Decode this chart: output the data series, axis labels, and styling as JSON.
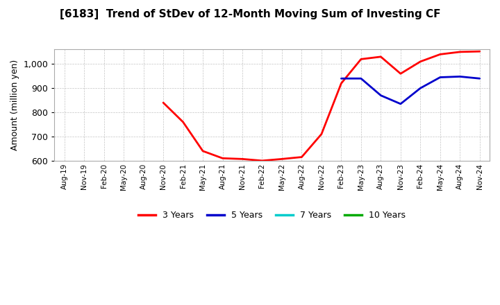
{
  "title": "[6183]  Trend of StDev of 12-Month Moving Sum of Investing CF",
  "ylabel": "Amount (million yen)",
  "background_color": "#ffffff",
  "grid_color": "#aaaaaa",
  "ylim": [
    600,
    1060
  ],
  "yticks": [
    600,
    700,
    800,
    900,
    1000
  ],
  "ytick_labels": [
    "600",
    "700",
    "800",
    "900",
    "1,000"
  ],
  "x_labels": [
    "Aug-19",
    "Nov-19",
    "Feb-20",
    "May-20",
    "Aug-20",
    "Nov-20",
    "Feb-21",
    "May-21",
    "Aug-21",
    "Nov-21",
    "Feb-22",
    "May-22",
    "Aug-22",
    "Nov-22",
    "Feb-23",
    "May-23",
    "Aug-23",
    "Nov-23",
    "Feb-24",
    "May-24",
    "Aug-24",
    "Nov-24"
  ],
  "series_3y": {
    "color": "#ff0000",
    "label": "3 Years",
    "x": [
      0,
      1,
      2,
      3,
      4,
      5,
      6,
      7,
      8,
      9,
      10,
      11,
      12,
      13,
      14,
      15,
      16,
      17,
      18,
      19,
      20,
      21
    ],
    "y": [
      null,
      null,
      null,
      null,
      null,
      840,
      760,
      640,
      610,
      607,
      600,
      607,
      615,
      710,
      920,
      1020,
      1030,
      960,
      1010,
      1040,
      1050,
      1052
    ]
  },
  "series_5y": {
    "color": "#0000cc",
    "label": "5 Years",
    "x": [
      0,
      1,
      2,
      3,
      4,
      5,
      6,
      7,
      8,
      9,
      10,
      11,
      12,
      13,
      14,
      15,
      16,
      17,
      18,
      19,
      20,
      21
    ],
    "y": [
      null,
      null,
      null,
      null,
      null,
      null,
      null,
      null,
      null,
      null,
      null,
      null,
      null,
      null,
      940,
      940,
      870,
      835,
      900,
      945,
      948,
      940
    ]
  },
  "series_7y": {
    "color": "#00cccc",
    "label": "7 Years",
    "x": [],
    "y": []
  },
  "series_10y": {
    "color": "#00aa00",
    "label": "10 Years",
    "x": [],
    "y": []
  },
  "legend_entries": [
    {
      "label": "3 Years",
      "color": "#ff0000"
    },
    {
      "label": "5 Years",
      "color": "#0000cc"
    },
    {
      "label": "7 Years",
      "color": "#00cccc"
    },
    {
      "label": "10 Years",
      "color": "#00aa00"
    }
  ]
}
